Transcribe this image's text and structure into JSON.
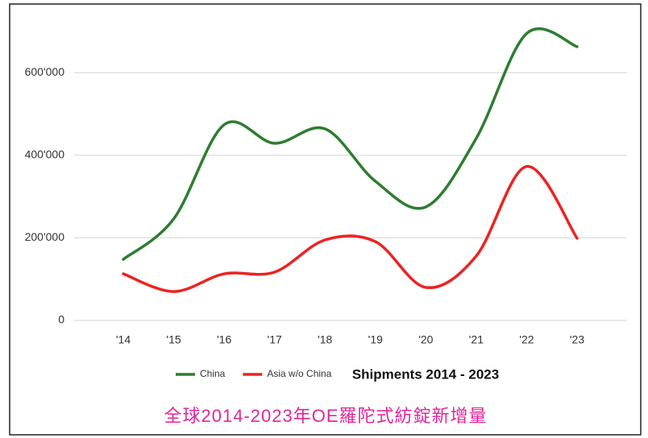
{
  "chart_data": {
    "type": "line",
    "title": "Shipments 2014 - 2023",
    "caption": "全球2014-2023年OE羅陀式紡錠新增量",
    "categories": [
      "'14",
      "'15",
      "'16",
      "'17",
      "'18",
      "'19",
      "'20",
      "'21",
      "'22",
      "'23"
    ],
    "series": [
      {
        "name": "China",
        "color": "#2e7d32",
        "values": [
          148000,
          246000,
          474000,
          429000,
          464000,
          337000,
          275000,
          441000,
          695000,
          663000
        ]
      },
      {
        "name": "Asia w/o China",
        "color": "#ee2222",
        "values": [
          113000,
          70000,
          113000,
          117000,
          195000,
          191000,
          80000,
          156000,
          373000,
          199000
        ]
      }
    ],
    "ylim": [
      0,
      700000
    ],
    "yticks": [
      0,
      {
        "value": 200000,
        "label": "200'000"
      },
      {
        "value": 400000,
        "label": "400'000"
      },
      {
        "value": 600000,
        "label": "600'000"
      }
    ],
    "grid": true,
    "legend": "bottom"
  }
}
